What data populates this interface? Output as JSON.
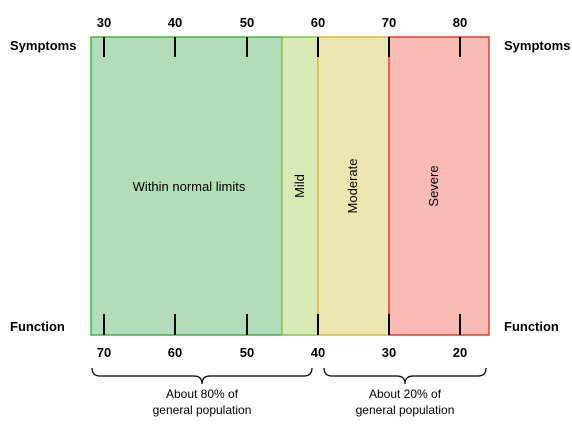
{
  "labels": {
    "symptoms_left": "Symptoms",
    "symptoms_right": "Symptoms",
    "function_left": "Function",
    "function_right": "Function"
  },
  "symptoms_axis": {
    "ticks": [
      "30",
      "40",
      "50",
      "60",
      "70",
      "80"
    ]
  },
  "function_axis": {
    "ticks": [
      "70",
      "60",
      "50",
      "40",
      "30",
      "20"
    ]
  },
  "zones": [
    {
      "label": "Within normal limits",
      "fill": "#b3dcb9",
      "stroke": "#4caf50"
    },
    {
      "label": "Mild",
      "fill": "#d9e9b5",
      "stroke": "#8bc34a"
    },
    {
      "label": "Moderate",
      "fill": "#ece7b0",
      "stroke": "#d4c13a"
    },
    {
      "label": "Severe",
      "fill": "#f8bcb4",
      "stroke": "#e53935"
    }
  ],
  "population": {
    "left": {
      "line1": "About 80% of",
      "line2": "general population"
    },
    "right": {
      "line1": "About 20% of",
      "line2": "general population"
    }
  }
}
